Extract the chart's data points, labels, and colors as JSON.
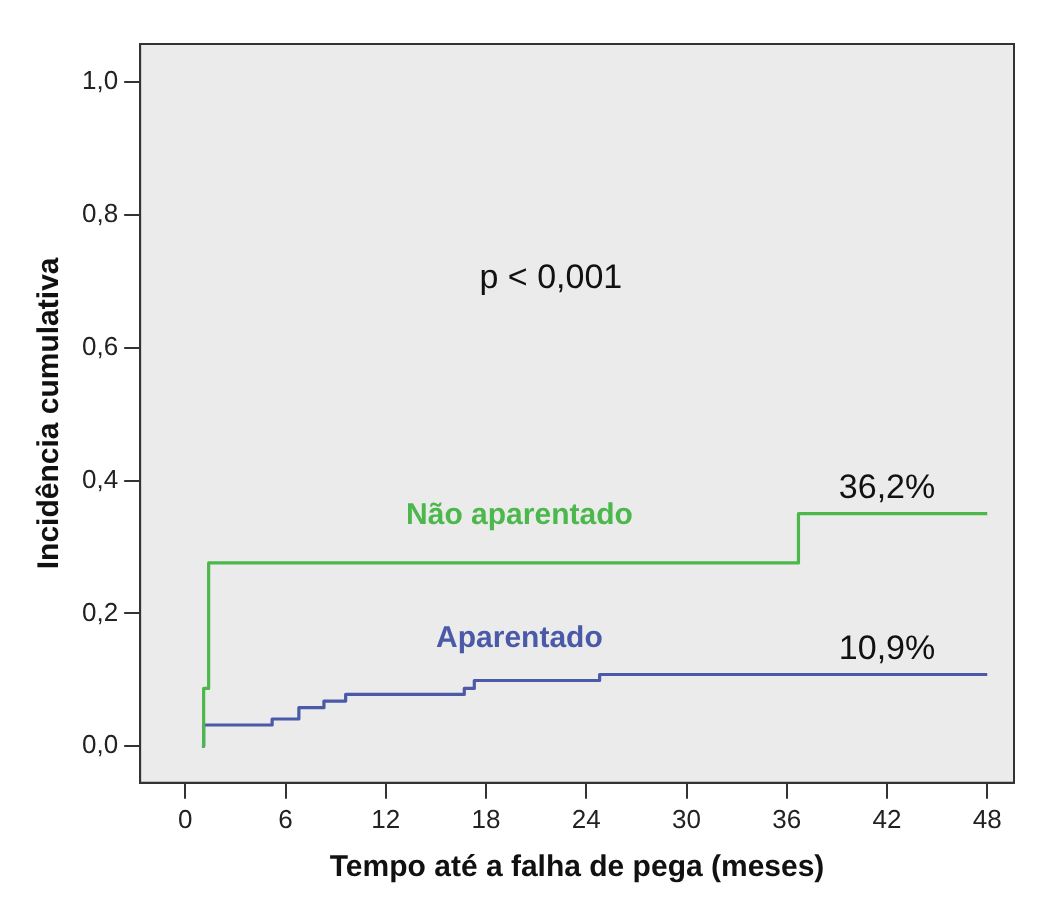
{
  "chart_data": {
    "type": "step",
    "xlabel": "Tempo até a falha de pega (meses)",
    "ylabel": "Incidência cumulativa",
    "xlim": [
      -2.7,
      49.6
    ],
    "ylim": [
      -0.055,
      1.057
    ],
    "xticks": [
      0,
      6,
      12,
      18,
      24,
      30,
      36,
      42,
      48
    ],
    "yticks": [
      {
        "value": 0,
        "label": "0,0"
      },
      {
        "value": 0.2,
        "label": "0,2"
      },
      {
        "value": 0.4,
        "label": "0,4"
      },
      {
        "value": 0.6,
        "label": "0,6"
      },
      {
        "value": 0.8,
        "label": "0,8"
      },
      {
        "value": 1,
        "label": "1,0"
      }
    ],
    "grid": false,
    "legend": false,
    "marker": "none",
    "line_style": "solid",
    "series": [
      {
        "name": "Não aparentado",
        "color": "#4cb84c",
        "x": [
          1,
          1.1,
          1.4,
          36.7,
          48
        ],
        "values": [
          0,
          0.087,
          0.276,
          0.35,
          0.35
        ]
      },
      {
        "name": "Aparentado",
        "color": "#4a5aa8",
        "x": [
          1,
          1.1,
          5.2,
          6.8,
          8.3,
          9.6,
          16.7,
          17.3,
          24.8,
          48
        ],
        "values": [
          0,
          0.032,
          0.041,
          0.058,
          0.068,
          0.078,
          0.087,
          0.099,
          0.108,
          0.108
        ]
      }
    ],
    "annotations": [
      "p < 0,001",
      {
        "text": "36,2%",
        "x": 42,
        "y": 0.35
      },
      {
        "text": "10,9%",
        "x": 42,
        "y": 0.108
      }
    ]
  }
}
